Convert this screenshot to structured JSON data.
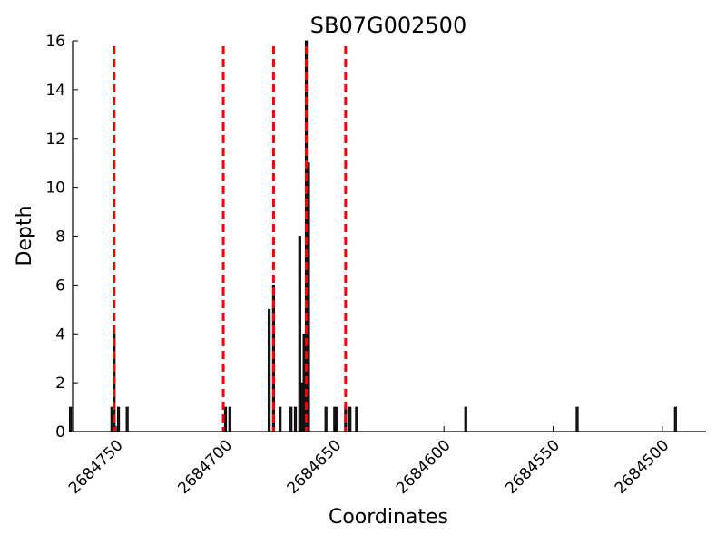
{
  "chart_data": {
    "type": "bar",
    "title": "SB07G002500",
    "xlabel": "Coordinates",
    "ylabel": "Depth",
    "xlim": [
      2684770,
      2684480
    ],
    "ylim": [
      0,
      16
    ],
    "x_inverted": true,
    "grid": false,
    "legend": "none",
    "x_ticks": [
      2684750,
      2684700,
      2684650,
      2684600,
      2684550,
      2684500
    ],
    "y_ticks": [
      0,
      2,
      4,
      6,
      8,
      10,
      12,
      14,
      16
    ],
    "bars": [
      {
        "x": 2684771,
        "y": 1
      },
      {
        "x": 2684752,
        "y": 1
      },
      {
        "x": 2684751,
        "y": 4
      },
      {
        "x": 2684749,
        "y": 1
      },
      {
        "x": 2684745,
        "y": 1
      },
      {
        "x": 2684700,
        "y": 1
      },
      {
        "x": 2684698,
        "y": 1
      },
      {
        "x": 2684680,
        "y": 5
      },
      {
        "x": 2684678,
        "y": 6
      },
      {
        "x": 2684675,
        "y": 1
      },
      {
        "x": 2684670,
        "y": 1
      },
      {
        "x": 2684668,
        "y": 1
      },
      {
        "x": 2684666,
        "y": 8
      },
      {
        "x": 2684665,
        "y": 2
      },
      {
        "x": 2684664,
        "y": 4
      },
      {
        "x": 2684663,
        "y": 16
      },
      {
        "x": 2684662,
        "y": 11
      },
      {
        "x": 2684654,
        "y": 1
      },
      {
        "x": 2684650,
        "y": 1
      },
      {
        "x": 2684649,
        "y": 1
      },
      {
        "x": 2684645,
        "y": 1
      },
      {
        "x": 2684643,
        "y": 1
      },
      {
        "x": 2684640,
        "y": 1
      },
      {
        "x": 2684590,
        "y": 1
      },
      {
        "x": 2684539,
        "y": 1
      },
      {
        "x": 2684494,
        "y": 1
      }
    ],
    "vlines": {
      "color": "#ff0000",
      "style": "dashed",
      "x": [
        2684751,
        2684701,
        2684678,
        2684663,
        2684645
      ]
    },
    "bar_color": "#1a1a1a"
  }
}
